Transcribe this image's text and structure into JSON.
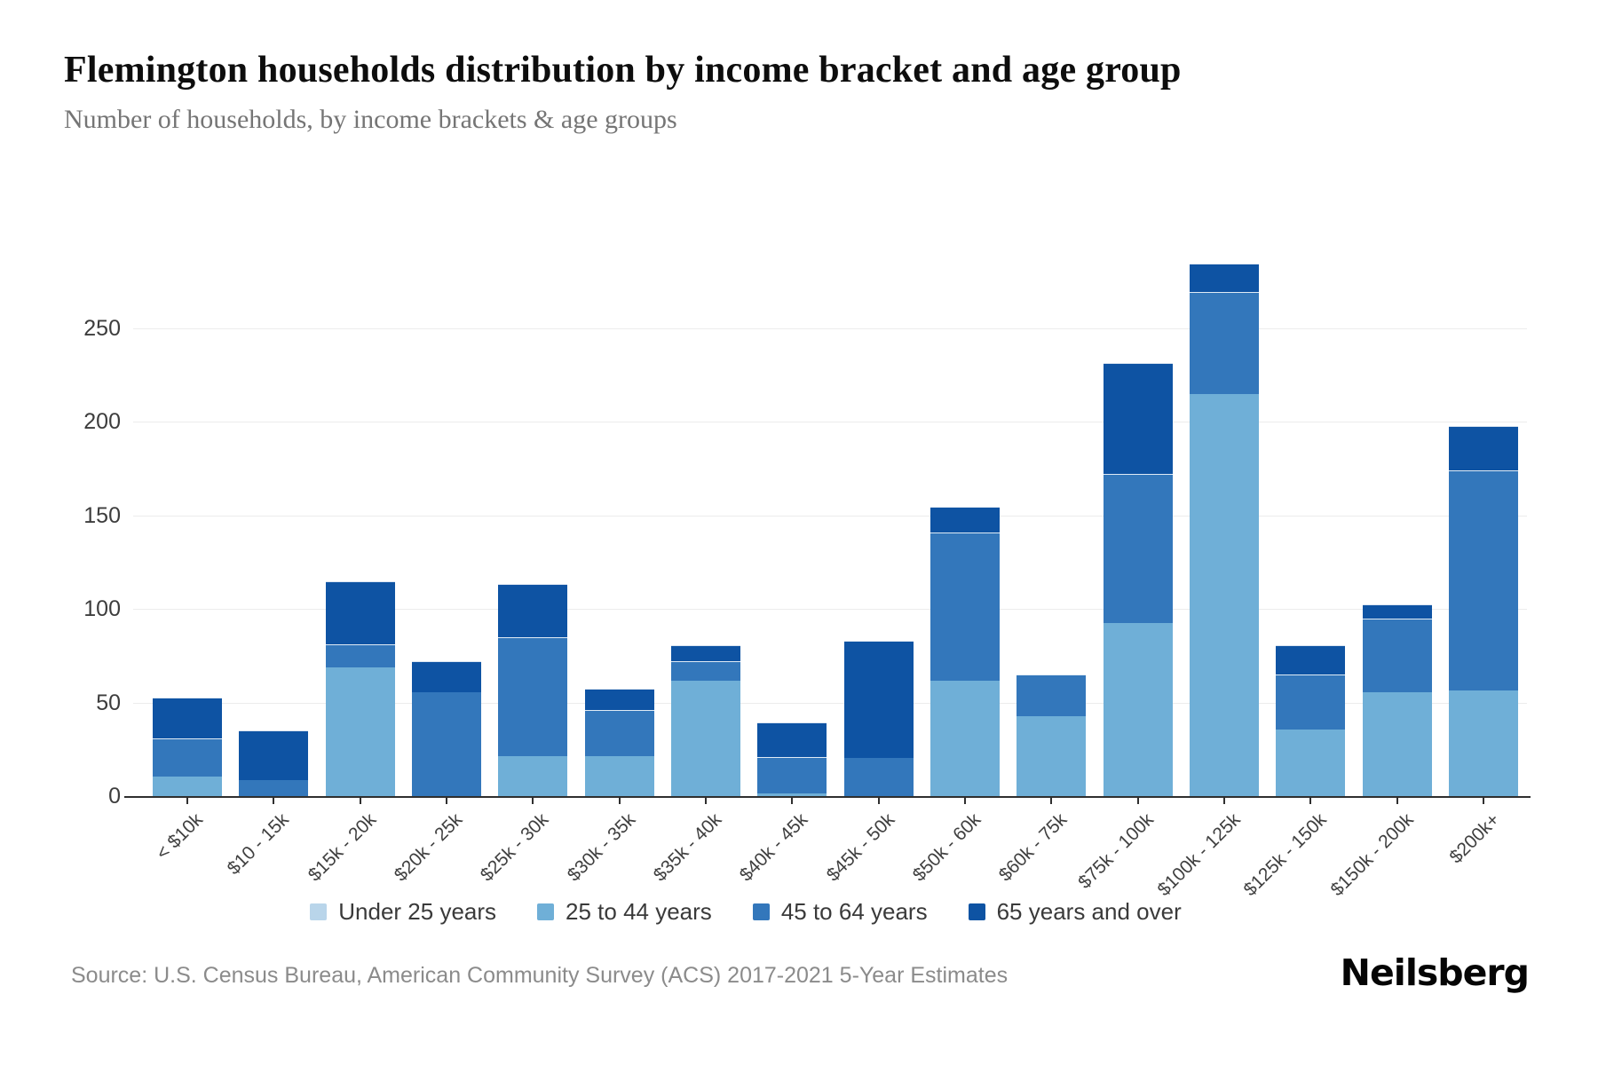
{
  "header": {
    "title": "Flemington households distribution by income bracket and age group",
    "subtitle": "Number of households, by income brackets & age groups"
  },
  "chart_data": {
    "type": "bar",
    "stacked": true,
    "title": "Flemington households distribution by income bracket and age group",
    "xlabel": "",
    "ylabel": "",
    "categories": [
      "< $10k",
      "$10 - 15k",
      "$15k - 20k",
      "$20k - 25k",
      "$25k - 30k",
      "$30k - 35k",
      "$35k - 40k",
      "$40k - 45k",
      "$45k - 50k",
      "$50k - 60k",
      "$60k - 75k",
      "$75k - 100k",
      "$100k - 125k",
      "$125k - 150k",
      "$150k - 200k",
      "$200k+"
    ],
    "series": [
      {
        "name": "Under 25 years",
        "color": "#b9d5ea",
        "values": [
          0,
          0,
          0,
          0,
          0,
          0,
          0,
          0,
          0,
          0,
          0,
          0,
          0,
          0,
          0,
          0
        ]
      },
      {
        "name": "25 to 44 years",
        "color": "#6fafd7",
        "values": [
          11,
          0,
          69,
          0,
          22,
          22,
          62,
          2,
          0,
          62,
          43,
          93,
          215,
          36,
          56,
          57
        ]
      },
      {
        "name": "45 to 64 years",
        "color": "#3377bb",
        "values": [
          20,
          9,
          12,
          56,
          63,
          24,
          10,
          19,
          21,
          79,
          22,
          79,
          54,
          29,
          39,
          117
        ]
      },
      {
        "name": "65 years and over",
        "color": "#0e53a3",
        "values": [
          21,
          26,
          33,
          16,
          28,
          11,
          8,
          18,
          62,
          13,
          0,
          59,
          15,
          15,
          7,
          23
        ]
      }
    ],
    "totals": [
      52,
      35,
      114,
      72,
      113,
      57,
      80,
      39,
      83,
      154,
      65,
      231,
      284,
      80,
      102,
      197
    ],
    "ylim": [
      0,
      300
    ],
    "yticks": [
      0,
      50,
      100,
      150,
      200,
      250
    ],
    "grid": true,
    "legend_position": "bottom"
  },
  "footer": {
    "source": "Source: U.S. Census Bureau, American Community Survey (ACS) 2017-2021 5-Year Estimates",
    "brand": "Neilsberg"
  }
}
